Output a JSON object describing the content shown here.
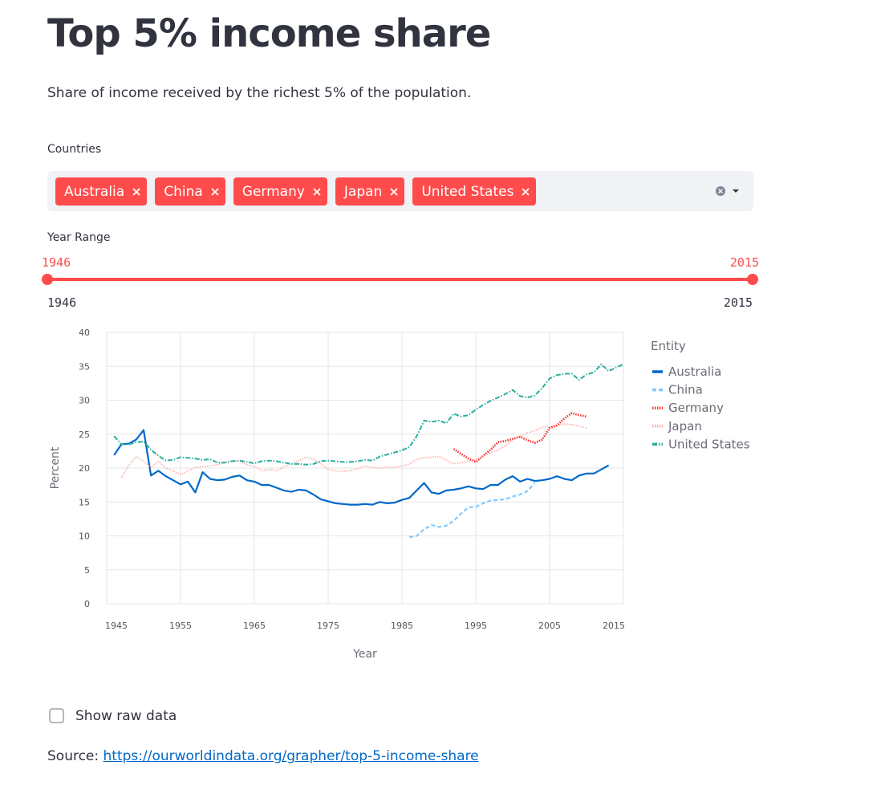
{
  "header": {
    "title": "Top 5% income share",
    "subtitle": "Share of income received by the richest 5% of the population."
  },
  "filters": {
    "countries_label": "Countries",
    "selected": [
      "Australia",
      "China",
      "Germany",
      "Japan",
      "United States"
    ],
    "year_range_label": "Year Range",
    "year_range": [
      1946,
      2015
    ],
    "year_min": 1946,
    "year_max": 2015
  },
  "chart_data": {
    "type": "line",
    "x_label": "Year",
    "y_label": "Percent",
    "legend_title": "Entity",
    "legend": "right",
    "xlim": [
      1945,
      2015
    ],
    "xticks": [
      1945,
      1955,
      1965,
      1975,
      1985,
      1995,
      2005,
      2015
    ],
    "ylim": [
      0,
      40
    ],
    "yticks": [
      0,
      5,
      10,
      15,
      20,
      25,
      30,
      35,
      40
    ],
    "grid": true,
    "x": [
      1946,
      1947,
      1948,
      1949,
      1950,
      1951,
      1952,
      1953,
      1954,
      1955,
      1956,
      1957,
      1958,
      1959,
      1960,
      1961,
      1962,
      1963,
      1964,
      1965,
      1966,
      1967,
      1968,
      1969,
      1970,
      1971,
      1972,
      1973,
      1974,
      1975,
      1976,
      1977,
      1978,
      1979,
      1980,
      1981,
      1982,
      1983,
      1984,
      1985,
      1986,
      1987,
      1988,
      1989,
      1990,
      1991,
      1992,
      1993,
      1994,
      1995,
      1996,
      1997,
      1998,
      1999,
      2000,
      2001,
      2002,
      2003,
      2004,
      2005,
      2006,
      2007,
      2008,
      2009,
      2010,
      2011,
      2012,
      2013,
      2014,
      2015
    ],
    "series": [
      {
        "name": "Australia",
        "color": "#0068c9",
        "values": [
          21.9,
          23.5,
          23.6,
          24.2,
          25.6,
          18.9,
          19.6,
          18.8,
          18.2,
          17.6,
          18.0,
          16.4,
          19.4,
          18.4,
          18.2,
          18.3,
          18.7,
          18.9,
          18.2,
          18.0,
          17.5,
          17.5,
          17.1,
          16.7,
          16.5,
          16.8,
          16.7,
          16.1,
          15.4,
          15.1,
          14.8,
          14.7,
          14.6,
          14.6,
          14.7,
          14.6,
          15.0,
          14.8,
          14.9,
          15.3,
          15.6,
          16.7,
          17.8,
          16.4,
          16.2,
          16.7,
          16.8,
          17.0,
          17.3,
          17.0,
          16.9,
          17.5,
          17.5,
          18.3,
          18.8,
          18.0,
          18.4,
          18.1,
          18.2,
          18.4,
          18.8,
          18.4,
          18.2,
          18.9,
          19.2,
          19.2,
          19.8,
          20.4,
          null,
          null
        ]
      },
      {
        "name": "China",
        "color": "#83c9ff",
        "values": [
          null,
          null,
          null,
          null,
          null,
          null,
          null,
          null,
          null,
          null,
          null,
          null,
          null,
          null,
          null,
          null,
          null,
          null,
          null,
          null,
          null,
          null,
          null,
          null,
          null,
          null,
          null,
          null,
          null,
          null,
          null,
          null,
          null,
          null,
          null,
          null,
          null,
          null,
          null,
          null,
          9.8,
          10.0,
          11.0,
          11.6,
          11.3,
          11.5,
          12.2,
          13.3,
          14.2,
          14.3,
          14.8,
          15.2,
          15.3,
          15.4,
          15.8,
          16.1,
          16.6,
          17.8,
          null,
          null,
          null,
          null,
          null,
          null,
          null,
          null,
          null,
          null,
          null,
          null
        ]
      },
      {
        "name": "Germany",
        "color": "#ff2b2b",
        "values": [
          null,
          null,
          null,
          null,
          null,
          null,
          null,
          null,
          null,
          null,
          null,
          null,
          null,
          null,
          null,
          null,
          null,
          null,
          null,
          null,
          null,
          null,
          null,
          null,
          null,
          null,
          null,
          null,
          null,
          null,
          null,
          null,
          null,
          null,
          null,
          null,
          null,
          null,
          null,
          null,
          null,
          null,
          null,
          null,
          null,
          null,
          22.8,
          22.1,
          21.4,
          20.9,
          21.8,
          22.7,
          23.8,
          24.0,
          24.3,
          24.6,
          24.1,
          23.7,
          24.2,
          25.9,
          26.3,
          27.3,
          28.1,
          27.8,
          27.6,
          null,
          null,
          null,
          null,
          null
        ]
      },
      {
        "name": "Japan",
        "color": "#ffabab",
        "values": [
          null,
          18.6,
          20.4,
          21.7,
          21.0,
          20.1,
          21.0,
          20.0,
          19.6,
          19.0,
          19.6,
          20.1,
          20.2,
          20.3,
          20.5,
          20.8,
          21.1,
          21.0,
          20.5,
          20.2,
          19.6,
          19.8,
          19.6,
          20.2,
          20.6,
          21.1,
          21.6,
          21.3,
          20.6,
          19.8,
          19.6,
          19.5,
          19.6,
          19.9,
          20.3,
          20.1,
          20.0,
          20.1,
          20.1,
          20.3,
          20.6,
          21.3,
          21.5,
          21.6,
          21.7,
          21.2,
          20.6,
          20.8,
          21.0,
          21.2,
          21.7,
          22.3,
          22.6,
          23.3,
          24.2,
          24.7,
          25.2,
          25.5,
          26.0,
          26.1,
          26.2,
          26.5,
          26.4,
          26.2,
          25.9,
          null,
          null,
          null,
          null,
          null
        ]
      },
      {
        "name": "United States",
        "color": "#29b09d",
        "values": [
          24.7,
          23.5,
          23.5,
          23.8,
          23.9,
          22.7,
          21.8,
          21.1,
          21.2,
          21.6,
          21.5,
          21.4,
          21.2,
          21.3,
          20.8,
          20.8,
          21.0,
          21.1,
          20.9,
          20.7,
          21.0,
          21.1,
          21.0,
          20.8,
          20.6,
          20.6,
          20.5,
          20.6,
          21.0,
          21.1,
          21.0,
          20.9,
          20.9,
          21.0,
          21.2,
          21.1,
          21.7,
          22.0,
          22.3,
          22.6,
          23.1,
          24.7,
          27.0,
          26.8,
          27.0,
          26.6,
          28.0,
          27.6,
          27.8,
          28.6,
          29.3,
          29.9,
          30.4,
          30.9,
          31.5,
          30.6,
          30.4,
          30.7,
          31.8,
          33.2,
          33.7,
          33.9,
          33.9,
          33.0,
          33.8,
          34.1,
          35.3,
          34.3,
          34.8,
          35.3
        ]
      }
    ]
  },
  "raw_data_toggle": {
    "label": "Show raw data",
    "checked": false
  },
  "footer": {
    "source_label": "Source:",
    "link": "https://ourworldindata.org/grapher/top-5-income-share"
  }
}
